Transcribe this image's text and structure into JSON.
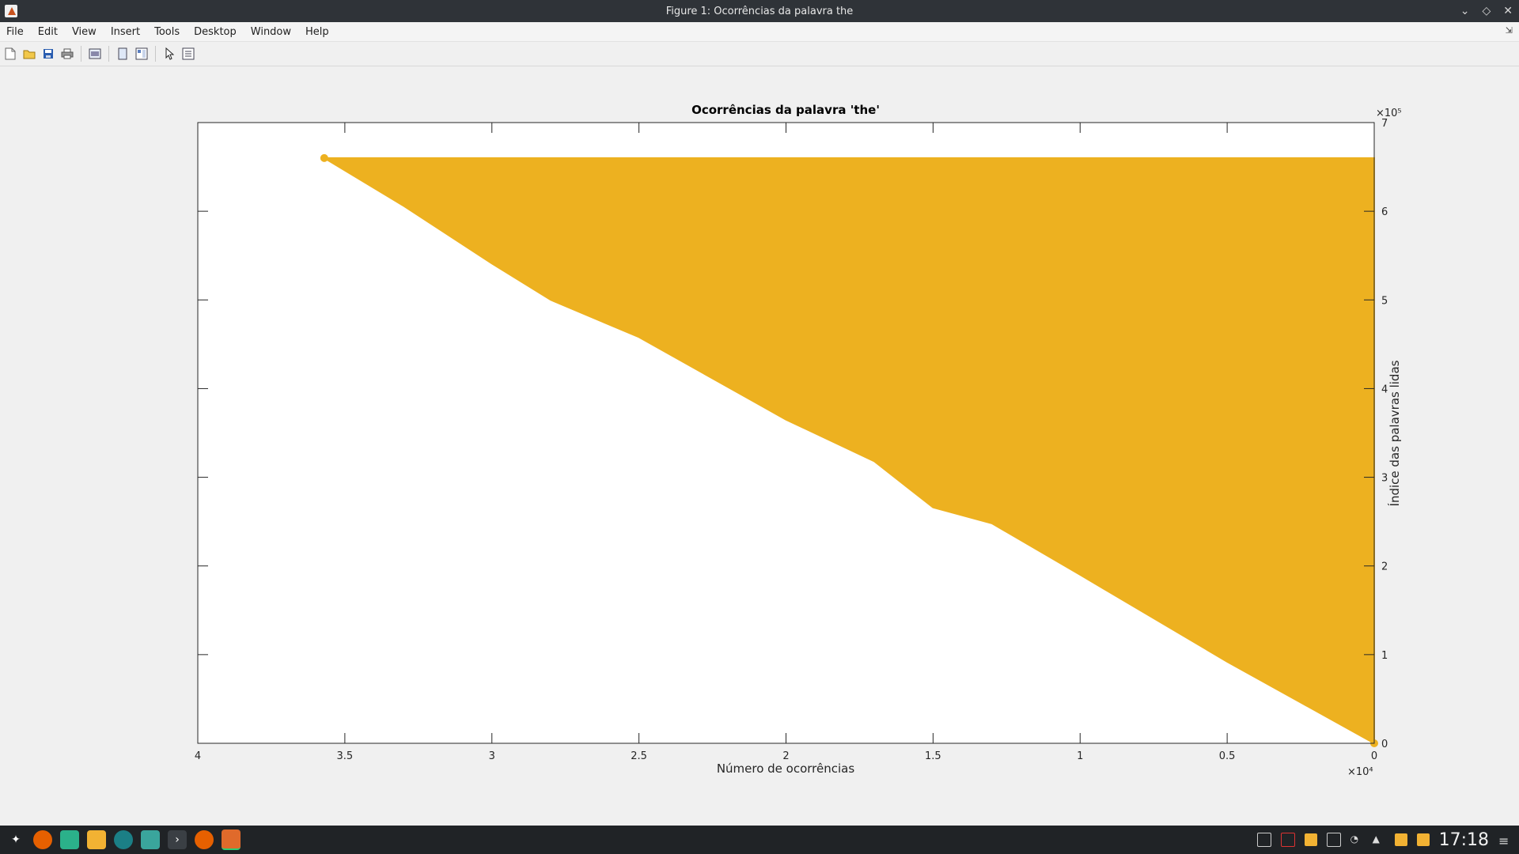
{
  "window": {
    "title": "Figure 1: Ocorrências da palavra the",
    "controls": {
      "minimize": "⌄",
      "maximize": "◇",
      "close": "✕"
    }
  },
  "menubar": {
    "items": [
      "File",
      "Edit",
      "View",
      "Insert",
      "Tools",
      "Desktop",
      "Window",
      "Help"
    ],
    "dock_icon": "undock-icon"
  },
  "toolbar": {
    "buttons": [
      "new-figure-icon",
      "open-file-icon",
      "save-icon",
      "print-icon",
      "link-plot-icon",
      "hide-plot-tools-icon",
      "show-plot-tools-icon",
      "edit-plot-icon",
      "property-inspector-icon"
    ]
  },
  "chart_data": {
    "type": "area",
    "title": "Ocorrências da palavra 'the'",
    "xlabel": "Número de ocorrências",
    "ylabel": "Índice das palavras lidas",
    "x_exponent": "×10⁴",
    "y_exponent": "×10⁵",
    "xlim": [
      0,
      40000
    ],
    "x_reversed": true,
    "ylim": [
      0,
      700000
    ],
    "y_axis_location": "right",
    "xticks": [
      40000,
      35000,
      30000,
      25000,
      20000,
      15000,
      10000,
      5000,
      0
    ],
    "xtick_labels": [
      "4",
      "3.5",
      "3",
      "2.5",
      "2",
      "1.5",
      "1",
      "0.5",
      "0"
    ],
    "yticks": [
      0,
      100000,
      200000,
      300000,
      400000,
      500000,
      600000,
      700000
    ],
    "ytick_labels": [
      "0",
      "1",
      "2",
      "3",
      "4",
      "5",
      "6",
      "7"
    ],
    "fill_color": "#EDB120",
    "series": [
      {
        "x": [
          0,
          5000,
          10000,
          13000,
          15000,
          17000,
          20000,
          25000,
          28000,
          30000,
          33000,
          35700
        ],
        "y": [
          0,
          92000,
          190000,
          248000,
          266000,
          318000,
          365000,
          458000,
          500000,
          541000,
          606000,
          660000
        ]
      }
    ],
    "fill_top_y": 660000,
    "grid": false
  },
  "taskbar": {
    "icons": [
      "app-launcher-icon",
      "firefox-icon",
      "file-manager-icon",
      "notes-icon",
      "keepass-icon",
      "store-icon",
      "terminal-icon",
      "firefox-icon",
      "matlab-icon"
    ],
    "clock": "17:18"
  }
}
